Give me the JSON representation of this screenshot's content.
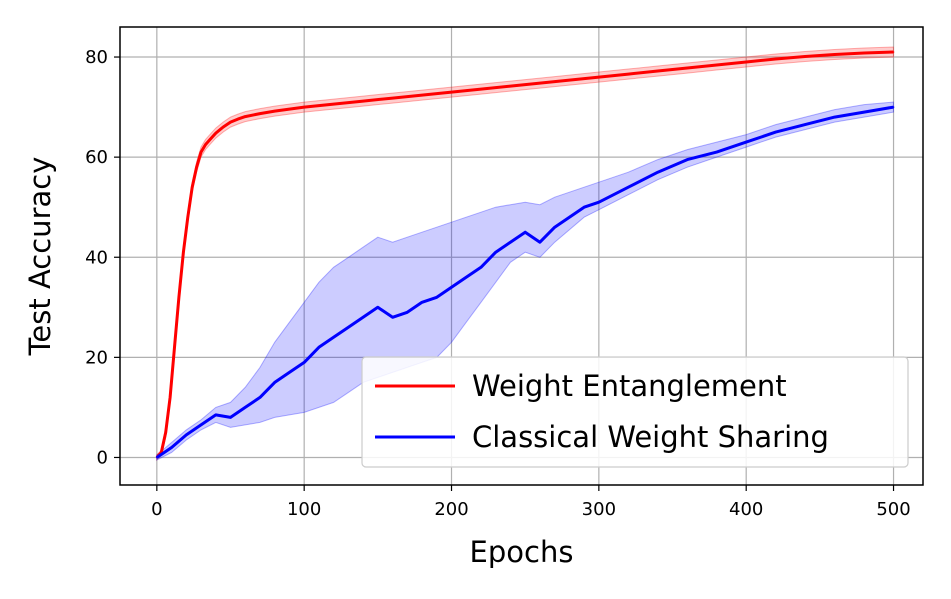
{
  "chart_data": {
    "type": "line",
    "xlabel": "Epochs",
    "ylabel": "Test Accuracy",
    "xlim": [
      -25,
      520
    ],
    "ylim": [
      -5.5,
      86
    ],
    "xticks": [
      0,
      100,
      200,
      300,
      400,
      500
    ],
    "yticks": [
      0,
      20,
      40,
      60,
      80
    ],
    "grid": true,
    "legend_position": "lower-right",
    "series": [
      {
        "name": "Weight Entanglement",
        "color": "#ff0000",
        "band_color": "#ff0000",
        "x": [
          0,
          3,
          6,
          9,
          12,
          15,
          18,
          21,
          24,
          27,
          30,
          33,
          36,
          40,
          45,
          50,
          55,
          60,
          70,
          80,
          90,
          100,
          120,
          140,
          160,
          180,
          200,
          220,
          240,
          260,
          280,
          300,
          320,
          340,
          360,
          380,
          400,
          420,
          440,
          460,
          480,
          500
        ],
        "values": [
          0,
          1,
          5,
          12,
          22,
          32,
          41,
          48,
          54,
          58,
          61,
          62.5,
          63.5,
          64.8,
          66,
          67,
          67.6,
          68.1,
          68.7,
          69.2,
          69.6,
          70,
          70.6,
          71.2,
          71.8,
          72.4,
          73,
          73.6,
          74.2,
          74.8,
          75.4,
          76,
          76.6,
          77.2,
          77.8,
          78.4,
          79,
          79.6,
          80.1,
          80.5,
          80.8,
          81
        ],
        "band_low": [
          -0.5,
          0.5,
          4,
          11,
          21,
          31,
          40,
          47,
          53,
          57,
          60,
          61.5,
          62.5,
          63.8,
          65,
          66,
          66.6,
          67.1,
          67.7,
          68.2,
          68.6,
          69,
          69.6,
          70.2,
          70.8,
          71.4,
          72,
          72.6,
          73.2,
          73.8,
          74.4,
          75,
          75.6,
          76.2,
          76.8,
          77.4,
          78,
          78.6,
          79.1,
          79.5,
          79.8,
          80
        ],
        "band_high": [
          0.5,
          1.5,
          6,
          13,
          23,
          33,
          42,
          49,
          55,
          59,
          62,
          63.5,
          64.5,
          65.8,
          67,
          68,
          68.6,
          69.1,
          69.7,
          70.2,
          70.6,
          71,
          71.6,
          72.2,
          72.8,
          73.4,
          74,
          74.6,
          75.2,
          75.8,
          76.4,
          77,
          77.6,
          78.2,
          78.8,
          79.4,
          80,
          80.6,
          81.1,
          81.5,
          81.8,
          82
        ]
      },
      {
        "name": "Classical Weight Sharing",
        "color": "#0000ff",
        "band_color": "#0000ff",
        "x": [
          0,
          10,
          20,
          30,
          40,
          50,
          60,
          70,
          80,
          90,
          100,
          110,
          120,
          130,
          140,
          150,
          160,
          170,
          180,
          190,
          200,
          210,
          220,
          230,
          240,
          250,
          260,
          270,
          280,
          290,
          300,
          320,
          340,
          360,
          380,
          400,
          420,
          440,
          460,
          480,
          500
        ],
        "values": [
          0,
          2,
          4.5,
          6.5,
          8.5,
          8,
          10,
          12,
          15,
          17,
          19,
          22,
          24,
          26,
          28,
          30,
          28,
          29,
          31,
          32,
          34,
          36,
          38,
          41,
          43,
          45,
          43,
          46,
          48,
          50,
          51,
          54,
          57,
          59.5,
          61,
          63,
          65,
          66.5,
          68,
          69,
          70
        ],
        "band_low": [
          -0.5,
          1,
          3.5,
          5.5,
          7,
          6,
          6.5,
          7,
          8,
          8.5,
          9,
          10,
          11,
          13,
          15,
          16,
          17,
          18,
          19,
          20,
          23,
          27,
          31,
          35,
          39,
          41,
          40,
          43,
          45.5,
          48,
          49.5,
          52.5,
          55.5,
          58,
          60,
          62,
          64,
          65.5,
          67,
          68,
          69
        ],
        "band_high": [
          0.5,
          3,
          5.5,
          7.5,
          10,
          11,
          14,
          18,
          23,
          27,
          31,
          35,
          38,
          40,
          42,
          44,
          43,
          44,
          45,
          46,
          47,
          48,
          49,
          50,
          50.5,
          51,
          50.5,
          52,
          53,
          54,
          55,
          57,
          59.5,
          61.5,
          63,
          64.5,
          66.5,
          68,
          69.5,
          70.5,
          71
        ]
      }
    ]
  }
}
